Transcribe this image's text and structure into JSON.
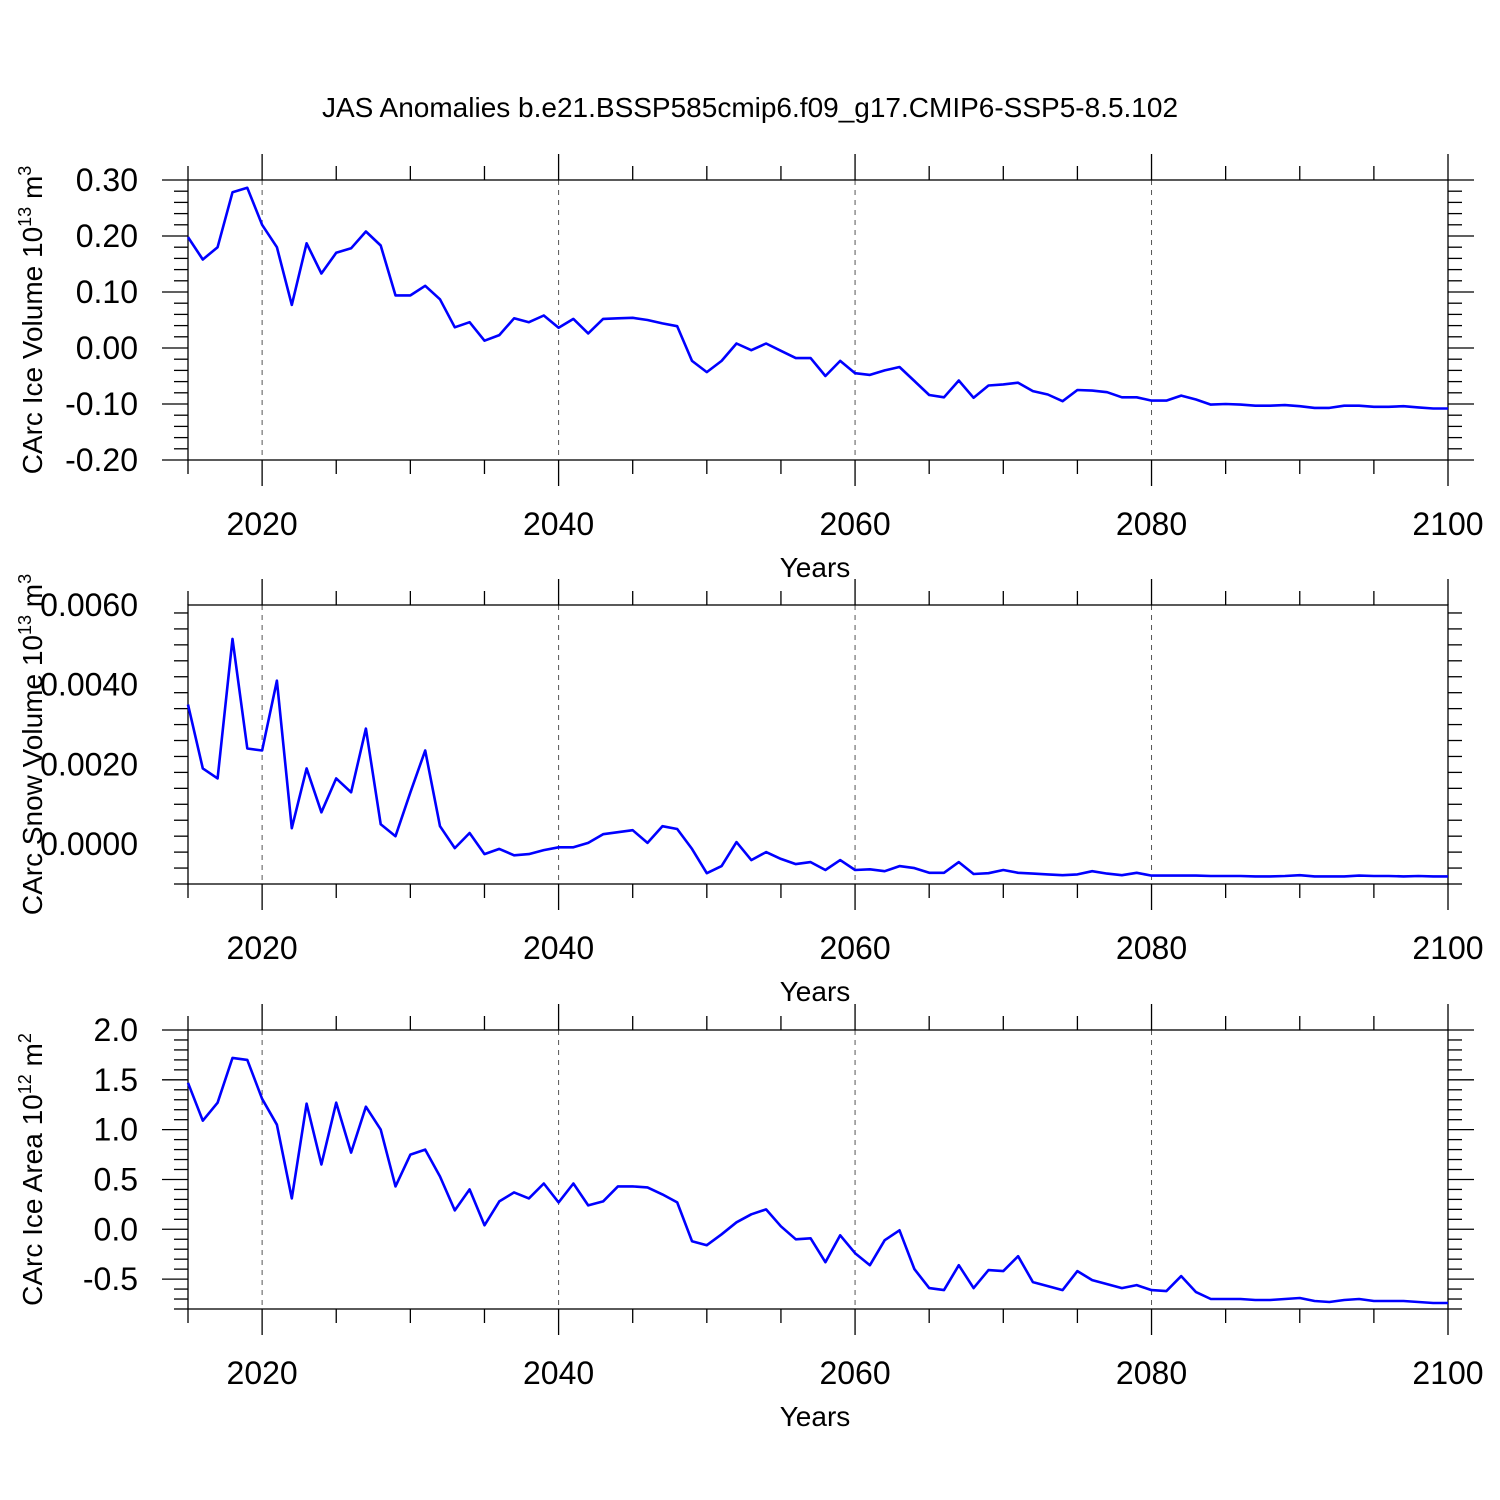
{
  "title": "JAS Anomalies b.e21.BSSP585cmip6.f09_g17.CMIP6-SSP5-8.5.102",
  "colors": {
    "series": "#0000ff",
    "axis": "#000000",
    "grid": "#555555"
  },
  "chart_data": [
    {
      "type": "line",
      "ylabel_main": "CArc Ice Volume 10",
      "ylabel_exp": "13",
      "ylabel_unit": " m",
      "ylabel_unit_exp": "3",
      "xlabel": "Years",
      "xlim": [
        2015,
        2100
      ],
      "ylim": [
        -0.2,
        0.3
      ],
      "yticks": [
        -0.2,
        -0.1,
        0.0,
        0.1,
        0.2,
        0.3
      ],
      "ytick_labels": [
        "-0.20",
        "-0.10",
        "0.00",
        "0.10",
        "0.20",
        "0.30"
      ],
      "xticks": [
        2020,
        2040,
        2060,
        2080,
        2100
      ],
      "xtick_labels": [
        "2020",
        "2040",
        "2060",
        "2080",
        "2100"
      ],
      "grid_x": [
        2020,
        2040,
        2060,
        2080
      ],
      "x_start": 2015,
      "values": [
        0.198,
        0.158,
        0.18,
        0.278,
        0.286,
        0.22,
        0.18,
        0.077,
        0.187,
        0.133,
        0.17,
        0.178,
        0.208,
        0.183,
        0.094,
        0.094,
        0.111,
        0.087,
        0.037,
        0.046,
        0.013,
        0.023,
        0.053,
        0.046,
        0.058,
        0.036,
        0.052,
        0.026,
        0.052,
        0.053,
        0.054,
        0.05,
        0.044,
        0.039,
        -0.023,
        -0.043,
        -0.023,
        0.008,
        -0.004,
        0.008,
        -0.005,
        -0.018,
        -0.018,
        -0.05,
        -0.023,
        -0.045,
        -0.048,
        -0.04,
        -0.034,
        -0.059,
        -0.084,
        -0.088,
        -0.058,
        -0.089,
        -0.067,
        -0.065,
        -0.062,
        -0.077,
        -0.083,
        -0.095,
        -0.075,
        -0.076,
        -0.079,
        -0.088,
        -0.088,
        -0.094,
        -0.094,
        -0.085,
        -0.092,
        -0.101,
        -0.1,
        -0.101,
        -0.103,
        -0.103,
        -0.102,
        -0.104,
        -0.107,
        -0.107,
        -0.103,
        -0.103,
        -0.105,
        -0.105,
        -0.104,
        -0.106,
        -0.108,
        -0.108
      ]
    },
    {
      "type": "line",
      "ylabel_main": "CArc Snow Volume 10",
      "ylabel_exp": "13",
      "ylabel_unit": " m",
      "ylabel_unit_exp": "3",
      "xlabel": "Years",
      "xlim": [
        2015,
        2100
      ],
      "ylim": [
        -0.001,
        0.006
      ],
      "yticks": [
        0.0,
        0.002,
        0.004,
        0.006
      ],
      "ytick_labels": [
        "0.0000",
        "0.0020",
        "0.0040",
        "0.0060"
      ],
      "xticks": [
        2020,
        2040,
        2060,
        2080,
        2100
      ],
      "xtick_labels": [
        "2020",
        "2040",
        "2060",
        "2080",
        "2100"
      ],
      "grid_x": [
        2020,
        2040,
        2060,
        2080
      ],
      "x_start": 2015,
      "values": [
        0.0035,
        0.0019,
        0.00165,
        0.00515,
        0.0024,
        0.00235,
        0.0041,
        0.0004,
        0.0019,
        0.0008,
        0.00165,
        0.0013,
        0.0029,
        0.0005,
        0.0002,
        0.0013,
        0.00235,
        0.00045,
        -0.0001,
        0.00028,
        -0.00025,
        -0.00012,
        -0.00028,
        -0.00025,
        -0.00015,
        -8e-05,
        -8e-05,
        3e-05,
        0.00025,
        0.0003,
        0.00035,
        3e-05,
        0.00045,
        0.00038,
        -0.00012,
        -0.00073,
        -0.00055,
        5e-05,
        -0.0004,
        -0.0002,
        -0.00037,
        -0.0005,
        -0.00045,
        -0.00065,
        -0.0004,
        -0.00065,
        -0.00063,
        -0.00068,
        -0.00055,
        -0.0006,
        -0.00072,
        -0.00072,
        -0.00045,
        -0.00075,
        -0.00073,
        -0.00065,
        -0.00072,
        -0.00074,
        -0.00076,
        -0.00078,
        -0.00076,
        -0.00068,
        -0.00074,
        -0.00078,
        -0.00072,
        -0.00079,
        -0.00079,
        -0.00079,
        -0.00079,
        -0.0008,
        -0.0008,
        -0.0008,
        -0.00081,
        -0.00081,
        -0.0008,
        -0.00078,
        -0.00081,
        -0.00081,
        -0.00081,
        -0.00079,
        -0.0008,
        -0.0008,
        -0.00081,
        -0.0008,
        -0.00081,
        -0.00081
      ]
    },
    {
      "type": "line",
      "ylabel_main": "CArc Ice Area 10",
      "ylabel_exp": "12",
      "ylabel_unit": " m",
      "ylabel_unit_exp": "2",
      "xlabel": "Years",
      "xlim": [
        2015,
        2100
      ],
      "ylim": [
        -0.8,
        2.0
      ],
      "yticks": [
        -0.5,
        0.0,
        0.5,
        1.0,
        1.5,
        2.0
      ],
      "ytick_labels": [
        "-0.5",
        "0.0",
        "0.5",
        "1.0",
        "1.5",
        "2.0"
      ],
      "xticks": [
        2020,
        2040,
        2060,
        2080,
        2100
      ],
      "xtick_labels": [
        "2020",
        "2040",
        "2060",
        "2080",
        "2100"
      ],
      "grid_x": [
        2020,
        2040,
        2060,
        2080
      ],
      "x_start": 2015,
      "values": [
        1.47,
        1.09,
        1.27,
        1.72,
        1.7,
        1.31,
        1.05,
        0.31,
        1.26,
        0.65,
        1.27,
        0.77,
        1.23,
        1.0,
        0.43,
        0.75,
        0.8,
        0.53,
        0.19,
        0.4,
        0.04,
        0.28,
        0.37,
        0.31,
        0.46,
        0.27,
        0.46,
        0.24,
        0.28,
        0.43,
        0.43,
        0.42,
        0.35,
        0.27,
        -0.12,
        -0.16,
        -0.05,
        0.07,
        0.15,
        0.2,
        0.03,
        -0.1,
        -0.09,
        -0.33,
        -0.06,
        -0.24,
        -0.36,
        -0.11,
        -0.01,
        -0.4,
        -0.59,
        -0.61,
        -0.36,
        -0.59,
        -0.41,
        -0.42,
        -0.27,
        -0.53,
        -0.57,
        -0.61,
        -0.42,
        -0.51,
        -0.55,
        -0.59,
        -0.56,
        -0.61,
        -0.62,
        -0.47,
        -0.63,
        -0.7,
        -0.7,
        -0.7,
        -0.71,
        -0.71,
        -0.7,
        -0.69,
        -0.72,
        -0.73,
        -0.71,
        -0.7,
        -0.72,
        -0.72,
        -0.72,
        -0.73,
        -0.74,
        -0.74
      ]
    }
  ]
}
